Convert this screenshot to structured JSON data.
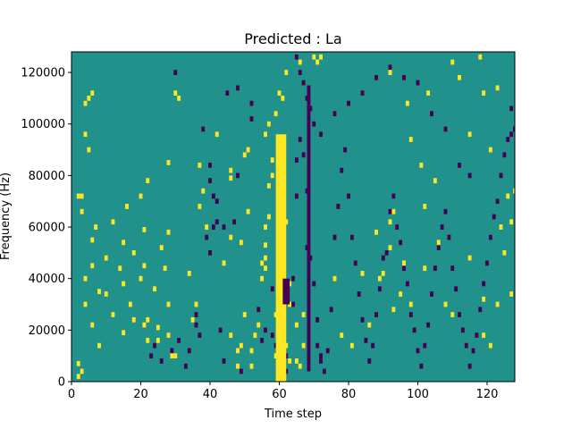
{
  "chart_data": {
    "type": "heatmap",
    "title": "Predicted : La",
    "xlabel": "Time step",
    "ylabel": "Frequency (Hz)",
    "xlim": [
      0,
      128
    ],
    "ylim": [
      0,
      128000
    ],
    "x_ticks": [
      0,
      20,
      40,
      60,
      80,
      100,
      120
    ],
    "y_ticks": [
      0,
      20000,
      40000,
      60000,
      80000,
      100000,
      120000
    ],
    "x_tick_labels": [
      "0",
      "20",
      "40",
      "60",
      "80",
      "100",
      "120"
    ],
    "y_tick_labels": [
      "0",
      "20000",
      "40000",
      "60000",
      "80000",
      "100000",
      "120000"
    ],
    "colormap": "viridis",
    "value_levels": {
      "low": "#440154",
      "mid": "#21918c",
      "high": "#fde725"
    },
    "background_value": "mid",
    "grid": false,
    "legend": false,
    "cells_high": [
      [
        2,
        2000
      ],
      [
        3,
        4000
      ],
      [
        2,
        7000
      ],
      [
        2,
        72000
      ],
      [
        3,
        72000
      ],
      [
        3,
        66000
      ],
      [
        4,
        108000
      ],
      [
        5,
        110000
      ],
      [
        6,
        112000
      ],
      [
        4,
        96000
      ],
      [
        5,
        90000
      ],
      [
        6,
        22000
      ],
      [
        4,
        30000
      ],
      [
        4,
        40000
      ],
      [
        6,
        45000
      ],
      [
        6,
        55000
      ],
      [
        7,
        60000
      ],
      [
        8,
        14000
      ],
      [
        8,
        35000
      ],
      [
        10,
        34000
      ],
      [
        10,
        48000
      ],
      [
        12,
        26000
      ],
      [
        12,
        62000
      ],
      [
        15,
        19000
      ],
      [
        15,
        38000
      ],
      [
        14,
        44000
      ],
      [
        15,
        54000
      ],
      [
        16,
        68000
      ],
      [
        17,
        30000
      ],
      [
        18,
        24000
      ],
      [
        18,
        50000
      ],
      [
        20,
        72000
      ],
      [
        21,
        22000
      ],
      [
        22,
        24000
      ],
      [
        22,
        16000
      ],
      [
        20,
        40000
      ],
      [
        21,
        45000
      ],
      [
        21,
        59000
      ],
      [
        22,
        78000
      ],
      [
        25,
        16000
      ],
      [
        25,
        21000
      ],
      [
        24,
        36000
      ],
      [
        27,
        44000
      ],
      [
        26,
        52000
      ],
      [
        28,
        18000
      ],
      [
        28,
        30000
      ],
      [
        29,
        10000
      ],
      [
        30,
        10000
      ],
      [
        28,
        58000
      ],
      [
        28,
        85000
      ],
      [
        30,
        112000
      ],
      [
        31,
        110000
      ],
      [
        34,
        42000
      ],
      [
        35,
        24000
      ],
      [
        36,
        30000
      ],
      [
        37,
        84000
      ],
      [
        37,
        68000
      ],
      [
        38,
        74000
      ],
      [
        39,
        60000
      ],
      [
        42,
        96000
      ],
      [
        44,
        46000
      ],
      [
        46,
        18000
      ],
      [
        46,
        56000
      ],
      [
        46,
        79000
      ],
      [
        46,
        82000
      ],
      [
        48,
        6000
      ],
      [
        48,
        12000
      ],
      [
        49,
        14000
      ],
      [
        49,
        54000
      ],
      [
        50,
        26000
      ],
      [
        50,
        88000
      ],
      [
        51,
        90000
      ],
      [
        51,
        66000
      ],
      [
        52,
        6000
      ],
      [
        52,
        12000
      ],
      [
        53,
        18000
      ],
      [
        54,
        22000
      ],
      [
        55,
        40000
      ],
      [
        55,
        46000
      ],
      [
        56,
        44000
      ],
      [
        56,
        48000
      ],
      [
        56,
        53000
      ],
      [
        56,
        60000
      ],
      [
        57,
        64000
      ],
      [
        57,
        76000
      ],
      [
        58,
        80000
      ],
      [
        58,
        86000
      ],
      [
        56,
        96000
      ],
      [
        57,
        100000
      ],
      [
        59,
        10000
      ],
      [
        59,
        26000
      ],
      [
        60,
        20000
      ],
      [
        60,
        46000
      ],
      [
        63,
        38000
      ],
      [
        62,
        14000
      ],
      [
        63,
        30000
      ],
      [
        61,
        68000
      ],
      [
        62,
        62000
      ],
      [
        59,
        104000
      ],
      [
        60,
        112000
      ],
      [
        61,
        110000
      ],
      [
        62,
        120000
      ],
      [
        63,
        8000
      ],
      [
        76,
        40000
      ],
      [
        78,
        18000
      ],
      [
        81,
        14000
      ],
      [
        84,
        42000
      ],
      [
        86,
        22000
      ],
      [
        88,
        58000
      ],
      [
        90,
        42000
      ],
      [
        92,
        62000
      ],
      [
        93,
        28000
      ],
      [
        95,
        34000
      ],
      [
        96,
        46000
      ],
      [
        98,
        30000
      ],
      [
        102,
        44000
      ],
      [
        106,
        54000
      ],
      [
        108,
        30000
      ],
      [
        110,
        26000
      ],
      [
        115,
        48000
      ],
      [
        119,
        32000
      ],
      [
        119,
        18000
      ],
      [
        121,
        14000
      ],
      [
        125,
        50000
      ],
      [
        123,
        30000
      ],
      [
        127,
        34000
      ],
      [
        127,
        62000
      ],
      [
        124,
        60000
      ],
      [
        126,
        72000
      ],
      [
        128,
        74000
      ],
      [
        121,
        90000
      ],
      [
        119,
        112000
      ],
      [
        123,
        114000
      ],
      [
        115,
        96000
      ],
      [
        105,
        78000
      ],
      [
        102,
        68000
      ],
      [
        101,
        84000
      ],
      [
        98,
        94000
      ],
      [
        93,
        66000
      ],
      [
        89,
        40000
      ],
      [
        92,
        52000
      ],
      [
        92,
        120000
      ],
      [
        97,
        108000
      ],
      [
        103,
        112000
      ],
      [
        110,
        124000
      ],
      [
        112,
        118000
      ],
      [
        118,
        126000
      ],
      [
        66,
        124000
      ],
      [
        70,
        126000
      ],
      [
        71,
        124000
      ],
      [
        72,
        126000
      ],
      [
        65,
        8000
      ],
      [
        66,
        6000
      ],
      [
        67,
        14000
      ],
      [
        65,
        22000
      ],
      [
        67,
        26000
      ]
    ],
    "cells_low": [
      [
        23,
        10000
      ],
      [
        24,
        14000
      ],
      [
        26,
        8000
      ],
      [
        29,
        12000
      ],
      [
        31,
        16000
      ],
      [
        33,
        6000
      ],
      [
        34,
        12000
      ],
      [
        36,
        22000
      ],
      [
        36,
        26000
      ],
      [
        37,
        18000
      ],
      [
        39,
        56000
      ],
      [
        40,
        50000
      ],
      [
        41,
        60000
      ],
      [
        38,
        98000
      ],
      [
        40,
        84000
      ],
      [
        40,
        78000
      ],
      [
        41,
        72000
      ],
      [
        42,
        70000
      ],
      [
        42,
        62000
      ],
      [
        44,
        60000
      ],
      [
        47,
        62000
      ],
      [
        48,
        80000
      ],
      [
        52,
        102000
      ],
      [
        54,
        28000
      ],
      [
        55,
        16000
      ],
      [
        56,
        20000
      ],
      [
        58,
        18000
      ],
      [
        58,
        36000
      ],
      [
        59,
        14000
      ],
      [
        60,
        54000
      ],
      [
        61,
        26000
      ],
      [
        61,
        12000
      ],
      [
        62,
        4000
      ],
      [
        62,
        10000
      ],
      [
        64,
        30000
      ],
      [
        64,
        40000
      ],
      [
        65,
        72000
      ],
      [
        65,
        86000
      ],
      [
        66,
        94000
      ],
      [
        67,
        88000
      ],
      [
        68,
        74000
      ],
      [
        68,
        52000
      ],
      [
        69,
        48000
      ],
      [
        70,
        38000
      ],
      [
        71,
        24000
      ],
      [
        71,
        14000
      ],
      [
        72,
        8000
      ],
      [
        72,
        10000
      ],
      [
        73,
        4000
      ],
      [
        74,
        12000
      ],
      [
        75,
        28000
      ],
      [
        76,
        56000
      ],
      [
        77,
        68000
      ],
      [
        78,
        82000
      ],
      [
        79,
        90000
      ],
      [
        80,
        72000
      ],
      [
        81,
        56000
      ],
      [
        82,
        46000
      ],
      [
        83,
        34000
      ],
      [
        84,
        24000
      ],
      [
        85,
        16000
      ],
      [
        86,
        8000
      ],
      [
        87,
        14000
      ],
      [
        88,
        26000
      ],
      [
        89,
        36000
      ],
      [
        90,
        48000
      ],
      [
        91,
        50000
      ],
      [
        92,
        66000
      ],
      [
        93,
        72000
      ],
      [
        94,
        60000
      ],
      [
        95,
        54000
      ],
      [
        96,
        44000
      ],
      [
        97,
        38000
      ],
      [
        98,
        26000
      ],
      [
        99,
        20000
      ],
      [
        100,
        12000
      ],
      [
        101,
        6000
      ],
      [
        102,
        14000
      ],
      [
        103,
        22000
      ],
      [
        104,
        34000
      ],
      [
        105,
        44000
      ],
      [
        106,
        52000
      ],
      [
        107,
        60000
      ],
      [
        108,
        66000
      ],
      [
        109,
        56000
      ],
      [
        110,
        44000
      ],
      [
        111,
        36000
      ],
      [
        112,
        26000
      ],
      [
        113,
        20000
      ],
      [
        114,
        14000
      ],
      [
        115,
        6000
      ],
      [
        116,
        12000
      ],
      [
        117,
        18000
      ],
      [
        118,
        28000
      ],
      [
        119,
        38000
      ],
      [
        120,
        46000
      ],
      [
        121,
        56000
      ],
      [
        122,
        64000
      ],
      [
        123,
        70000
      ],
      [
        124,
        80000
      ],
      [
        125,
        88000
      ],
      [
        126,
        94000
      ],
      [
        127,
        96000
      ],
      [
        128,
        98000
      ],
      [
        127,
        106000
      ],
      [
        115,
        80000
      ],
      [
        112,
        84000
      ],
      [
        108,
        98000
      ],
      [
        104,
        104000
      ],
      [
        100,
        116000
      ],
      [
        96,
        118000
      ],
      [
        92,
        122000
      ],
      [
        88,
        118000
      ],
      [
        84,
        112000
      ],
      [
        80,
        108000
      ],
      [
        76,
        104000
      ],
      [
        72,
        96000
      ],
      [
        70,
        100000
      ],
      [
        69,
        106000
      ],
      [
        68,
        110000
      ],
      [
        67,
        116000
      ],
      [
        66,
        120000
      ],
      [
        65,
        126000
      ],
      [
        30,
        120000
      ],
      [
        48,
        114000
      ],
      [
        52,
        108000
      ],
      [
        45,
        112000
      ],
      [
        43,
        20000
      ],
      [
        44,
        8000
      ],
      [
        49,
        4000
      ]
    ],
    "bands": [
      {
        "level": "high",
        "x_range": [
          59,
          62
        ],
        "y_range": [
          0,
          96000
        ]
      },
      {
        "level": "low",
        "x_range": [
          68,
          69
        ],
        "y_range": [
          4000,
          115000
        ]
      },
      {
        "level": "low",
        "x_range": [
          61,
          63
        ],
        "y_range": [
          30000,
          40000
        ]
      }
    ]
  }
}
